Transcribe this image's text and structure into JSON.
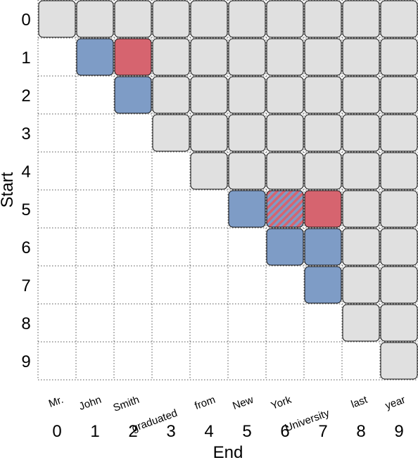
{
  "chart_data": {
    "type": "heatmap",
    "title": "",
    "xlabel": "End",
    "ylabel": "Start",
    "tokens": [
      "Mr.",
      "John",
      "Smith",
      "graduated",
      "from",
      "New",
      "York",
      "University",
      "last",
      "year"
    ],
    "x_ticks": [
      "0",
      "1",
      "2",
      "3",
      "4",
      "5",
      "6",
      "7",
      "8",
      "9"
    ],
    "y_ticks": [
      "0",
      "1",
      "2",
      "3",
      "4",
      "5",
      "6",
      "7",
      "8",
      "9"
    ],
    "grid": true,
    "colors": {
      "gray": "#e0e0e0",
      "blue": "#7e9cc6",
      "red": "#d6646f",
      "cell_border": "#111111",
      "grid_line": "#555555"
    },
    "categories_legend": [
      "gray",
      "blue",
      "red",
      "hatched"
    ],
    "cells": [
      [
        0,
        0,
        "gray"
      ],
      [
        0,
        1,
        "gray"
      ],
      [
        0,
        2,
        "gray"
      ],
      [
        0,
        3,
        "gray"
      ],
      [
        0,
        4,
        "gray"
      ],
      [
        0,
        5,
        "gray"
      ],
      [
        0,
        6,
        "gray"
      ],
      [
        0,
        7,
        "gray"
      ],
      [
        0,
        8,
        "gray"
      ],
      [
        0,
        9,
        "gray"
      ],
      [
        1,
        1,
        "blue"
      ],
      [
        1,
        2,
        "red"
      ],
      [
        1,
        3,
        "gray"
      ],
      [
        1,
        4,
        "gray"
      ],
      [
        1,
        5,
        "gray"
      ],
      [
        1,
        6,
        "gray"
      ],
      [
        1,
        7,
        "gray"
      ],
      [
        1,
        8,
        "gray"
      ],
      [
        1,
        9,
        "gray"
      ],
      [
        2,
        2,
        "blue"
      ],
      [
        2,
        3,
        "gray"
      ],
      [
        2,
        4,
        "gray"
      ],
      [
        2,
        5,
        "gray"
      ],
      [
        2,
        6,
        "gray"
      ],
      [
        2,
        7,
        "gray"
      ],
      [
        2,
        8,
        "gray"
      ],
      [
        2,
        9,
        "gray"
      ],
      [
        3,
        3,
        "gray"
      ],
      [
        3,
        4,
        "gray"
      ],
      [
        3,
        5,
        "gray"
      ],
      [
        3,
        6,
        "gray"
      ],
      [
        3,
        7,
        "gray"
      ],
      [
        3,
        8,
        "gray"
      ],
      [
        3,
        9,
        "gray"
      ],
      [
        4,
        4,
        "gray"
      ],
      [
        4,
        5,
        "gray"
      ],
      [
        4,
        6,
        "gray"
      ],
      [
        4,
        7,
        "gray"
      ],
      [
        4,
        8,
        "gray"
      ],
      [
        4,
        9,
        "gray"
      ],
      [
        5,
        5,
        "blue"
      ],
      [
        5,
        6,
        "hatched"
      ],
      [
        5,
        7,
        "red"
      ],
      [
        5,
        8,
        "gray"
      ],
      [
        5,
        9,
        "gray"
      ],
      [
        6,
        6,
        "blue"
      ],
      [
        6,
        7,
        "blue"
      ],
      [
        6,
        8,
        "gray"
      ],
      [
        6,
        9,
        "gray"
      ],
      [
        7,
        7,
        "blue"
      ],
      [
        7,
        8,
        "gray"
      ],
      [
        7,
        9,
        "gray"
      ],
      [
        8,
        8,
        "gray"
      ],
      [
        8,
        9,
        "gray"
      ],
      [
        9,
        9,
        "gray"
      ]
    ]
  }
}
